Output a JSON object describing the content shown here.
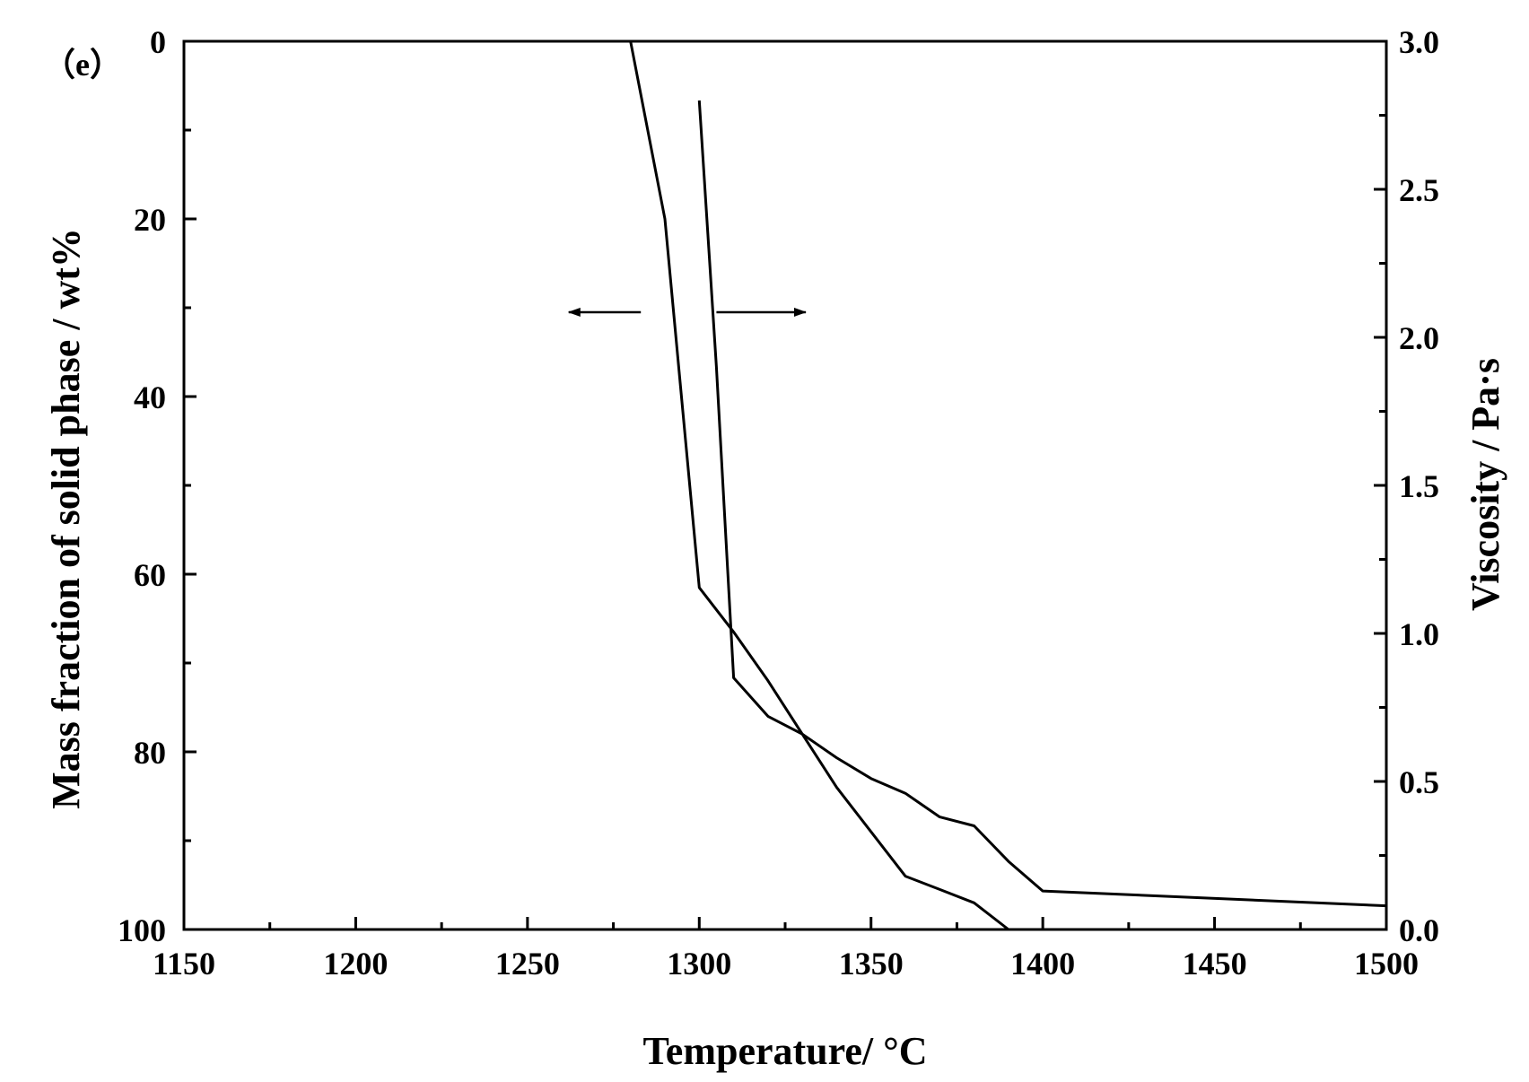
{
  "chart_data": {
    "type": "line",
    "panel_label": "（e）",
    "xlabel": "Temperature/ °C",
    "ylabel_left": "Mass fraction of solid phase / wt%",
    "ylabel_right": "Viscosity / Pa·s",
    "xlim": [
      1150,
      1500
    ],
    "ylim_left": [
      0,
      100
    ],
    "ylim_left_inverted": true,
    "ylim_right": [
      0,
      3.0
    ],
    "x_ticks": [
      1150,
      1200,
      1250,
      1300,
      1350,
      1400,
      1450,
      1500
    ],
    "x_tick_labels": [
      "1150",
      "1200",
      "1250",
      "1300",
      "1350",
      "1400",
      "1450",
      "1500"
    ],
    "y_left_ticks": [
      0,
      20,
      40,
      60,
      80,
      100
    ],
    "y_left_tick_labels": [
      "0",
      "20",
      "40",
      "60",
      "80",
      "100"
    ],
    "y_right_ticks": [
      0.0,
      0.5,
      1.0,
      1.5,
      2.0,
      2.5,
      3.0
    ],
    "y_right_tick_labels": [
      "0.0",
      "0.5",
      "1.0",
      "1.5",
      "2.0",
      "2.5",
      "3.0"
    ],
    "grid": false,
    "legend": "none",
    "line_color": "#000000",
    "series": [
      {
        "axis": "left",
        "x": [
          1280,
          1290,
          1300,
          1310,
          1320,
          1330,
          1340,
          1350,
          1360,
          1370,
          1380,
          1390
        ],
        "values": [
          0,
          20,
          61.5,
          66.5,
          72,
          78,
          84,
          89,
          94,
          95.5,
          97,
          100
        ]
      },
      {
        "axis": "right",
        "x": [
          1300,
          1305,
          1310,
          1320,
          1330,
          1340,
          1350,
          1360,
          1370,
          1380,
          1390,
          1400,
          1500
        ],
        "values": [
          2.8,
          1.9,
          0.85,
          0.72,
          0.66,
          0.58,
          0.51,
          0.46,
          0.38,
          0.35,
          0.23,
          0.13,
          0.08
        ]
      }
    ],
    "annotations": [
      {
        "type": "arrow",
        "points_to": "left-axis",
        "x_from": 1283,
        "x_to": 1262,
        "y_left": 30.5
      },
      {
        "type": "arrow",
        "points_to": "right-axis",
        "x_from": 1305,
        "x_to": 1331,
        "y_left": 30.5
      }
    ]
  }
}
